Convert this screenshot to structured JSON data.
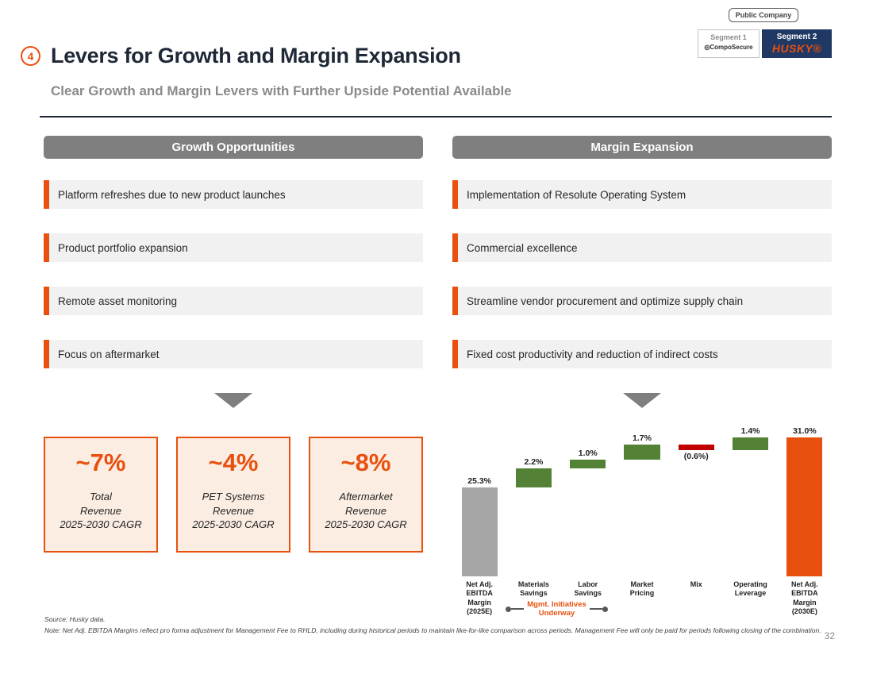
{
  "meta": {
    "page_number": "32"
  },
  "header": {
    "slide_number": "4",
    "title": "Levers for Growth and Margin Expansion",
    "subtitle": "Clear Growth and Margin Levers with Further Upside Potential Available"
  },
  "badges": {
    "public_company": "Public Company",
    "segment1": {
      "label": "Segment 1",
      "logo": "CompoSecure",
      "mark": "◎"
    },
    "segment2": {
      "label": "Segment 2",
      "logo": "HUSKY®"
    }
  },
  "growth": {
    "header": "Growth Opportunities",
    "items": [
      "Platform refreshes due to new product launches",
      "Product portfolio expansion",
      "Remote asset monitoring",
      "Focus on aftermarket"
    ],
    "stats": [
      {
        "value": "~7%",
        "lines": [
          "Total",
          "Revenue",
          "2025-2030 CAGR"
        ]
      },
      {
        "value": "~4%",
        "lines": [
          "PET Systems",
          "Revenue",
          "2025-2030 CAGR"
        ]
      },
      {
        "value": "~8%",
        "lines": [
          "Aftermarket",
          "Revenue",
          "2025-2030 CAGR"
        ]
      }
    ]
  },
  "margin": {
    "header": "Margin Expansion",
    "items": [
      "Implementation of Resolute Operating System",
      "Commercial excellence",
      "Streamline vendor procurement and optimize supply chain",
      "Fixed cost productivity and reduction of indirect costs"
    ]
  },
  "chart_data": {
    "type": "waterfall",
    "title": "Net Adj. EBITDA Margin bridge 2025E to 2030E (%)",
    "axis_min": 15,
    "axis_max": 31.5,
    "colors": {
      "total_start": "#A6A6A6",
      "positive": "#538135",
      "negative": "#C00000",
      "total_end": "#E8500F"
    },
    "steps": [
      {
        "label_lines": [
          "Net Adj.",
          "EBITDA",
          "Margin",
          "(2025E)"
        ],
        "value": 25.3,
        "display": "25.3%",
        "kind": "total",
        "color": "#A6A6A6"
      },
      {
        "label_lines": [
          "Materials",
          "Savings"
        ],
        "value": 2.2,
        "display": "2.2%",
        "kind": "delta",
        "color": "#538135"
      },
      {
        "label_lines": [
          "Labor",
          "Savings"
        ],
        "value": 1.0,
        "display": "1.0%",
        "kind": "delta",
        "color": "#538135"
      },
      {
        "label_lines": [
          "Market",
          "Pricing"
        ],
        "value": 1.7,
        "display": "1.7%",
        "kind": "delta",
        "color": "#538135"
      },
      {
        "label_lines": [
          "Mix"
        ],
        "value": -0.6,
        "display": "(0.6%)",
        "kind": "delta",
        "color": "#C00000"
      },
      {
        "label_lines": [
          "Operating",
          "Leverage"
        ],
        "value": 1.4,
        "display": "1.4%",
        "kind": "delta",
        "color": "#538135"
      },
      {
        "label_lines": [
          "Net Adj.",
          "EBITDA",
          "Margin",
          "(2030E)"
        ],
        "value": 31.0,
        "display": "31.0%",
        "kind": "total",
        "color": "#E8500F"
      }
    ],
    "annotation": {
      "lines": [
        "Mgmt. Initiatives",
        "Underway"
      ]
    }
  },
  "footer": {
    "source": "Source: Husky data.",
    "note": "Note: Net Adj. EBITDA Margins reflect pro forma adjustment for Management Fee to RHLD, including during historical periods to maintain like-for-like comparison across periods. Management Fee will only be paid for periods following closing of the combination."
  }
}
